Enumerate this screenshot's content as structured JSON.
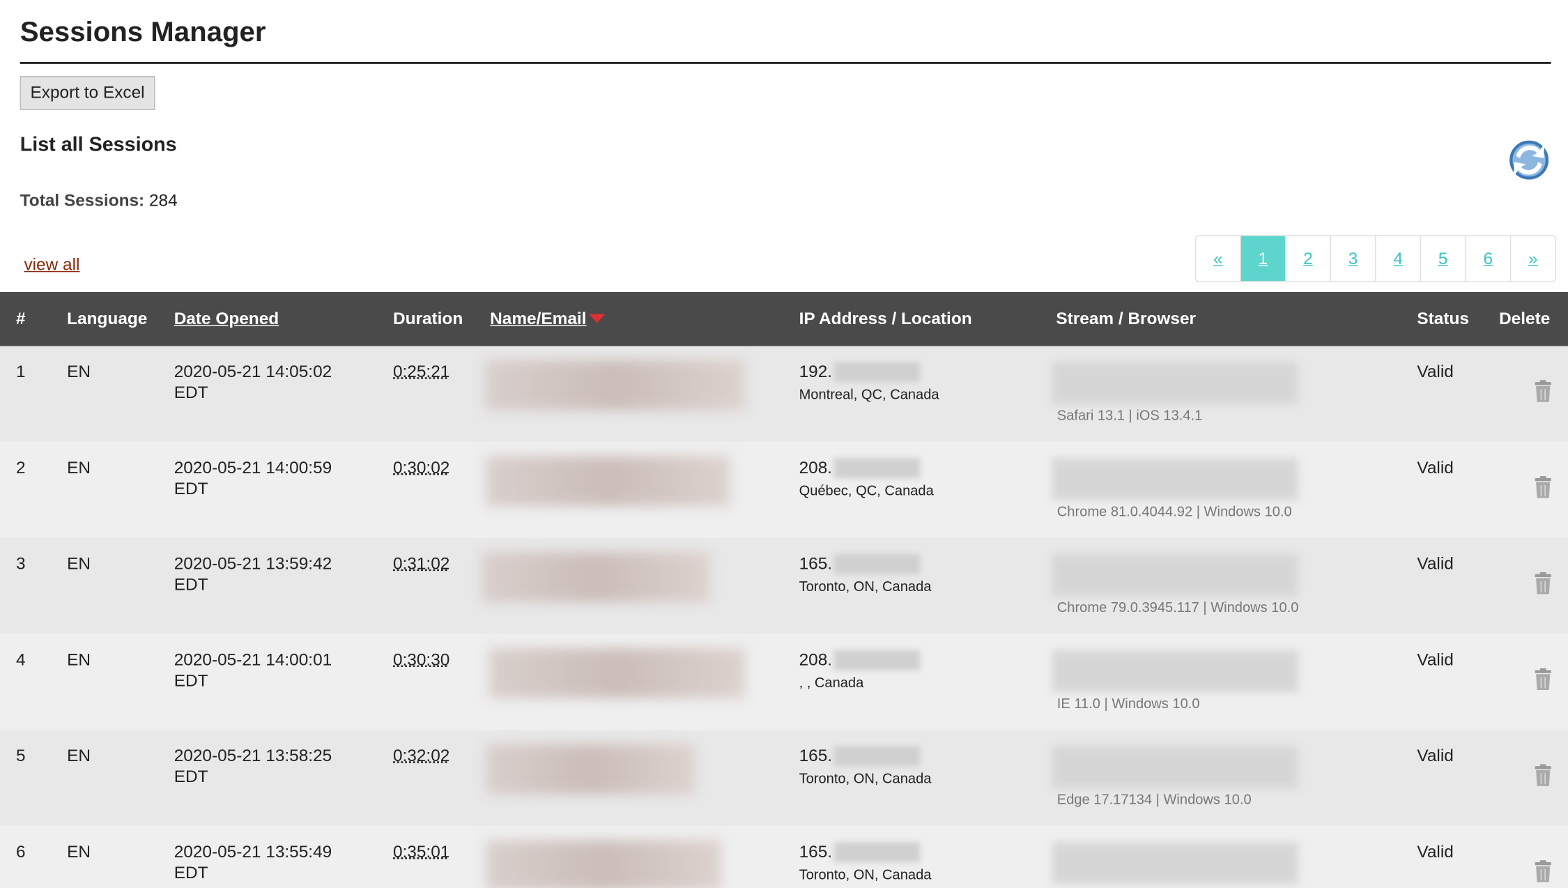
{
  "header": {
    "title": "Sessions Manager"
  },
  "export_button": "Export to Excel",
  "section_title": "List all Sessions",
  "total": {
    "label": "Total Sessions:",
    "value": "284"
  },
  "view_all": "view all",
  "pagination": [
    "«",
    "1",
    "2",
    "3",
    "4",
    "5",
    "6",
    "»"
  ],
  "table": {
    "headers": [
      "#",
      "Language",
      "Date Opened",
      "Duration",
      "Name/Email",
      "IP Address / Location",
      "Stream / Browser",
      "Status",
      "Delete"
    ],
    "rows": [
      {
        "num": "1",
        "language": "EN",
        "date": "2020-05-21 14:05:02",
        "tz": "EDT",
        "duration": "0:25:21",
        "ip": "192.",
        "location": "Montreal, QC, Canada",
        "browser": "Safari 13.1 | iOS 13.4.1",
        "status": "Valid"
      },
      {
        "num": "2",
        "language": "EN",
        "date": "2020-05-21 14:00:59",
        "tz": "EDT",
        "duration": "0:30:02",
        "ip": "208.",
        "location": "Québec, QC, Canada",
        "browser": "Chrome 81.0.4044.92 | Windows 10.0",
        "status": "Valid"
      },
      {
        "num": "3",
        "language": "EN",
        "date": "2020-05-21 13:59:42",
        "tz": "EDT",
        "duration": "0:31:02",
        "ip": "165.",
        "location": "Toronto, ON, Canada",
        "browser": "Chrome 79.0.3945.117 | Windows 10.0",
        "status": "Valid"
      },
      {
        "num": "4",
        "language": "EN",
        "date": "2020-05-21 14:00:01",
        "tz": "EDT",
        "duration": "0:30:30",
        "ip": "208.",
        "location": ", , Canada",
        "browser": "IE 11.0 | Windows 10.0",
        "status": "Valid"
      },
      {
        "num": "5",
        "language": "EN",
        "date": "2020-05-21 13:58:25",
        "tz": "EDT",
        "duration": "0:32:02",
        "ip": "165.",
        "location": "Toronto, ON, Canada",
        "browser": "Edge 17.17134 | Windows 10.0",
        "status": "Valid"
      },
      {
        "num": "6",
        "language": "EN",
        "date": "2020-05-21 13:55:49",
        "tz": "EDT",
        "duration": "0:35:01",
        "ip": "165.",
        "location": "Toronto, ON, Canada",
        "browser": "",
        "status": "Valid"
      }
    ]
  }
}
